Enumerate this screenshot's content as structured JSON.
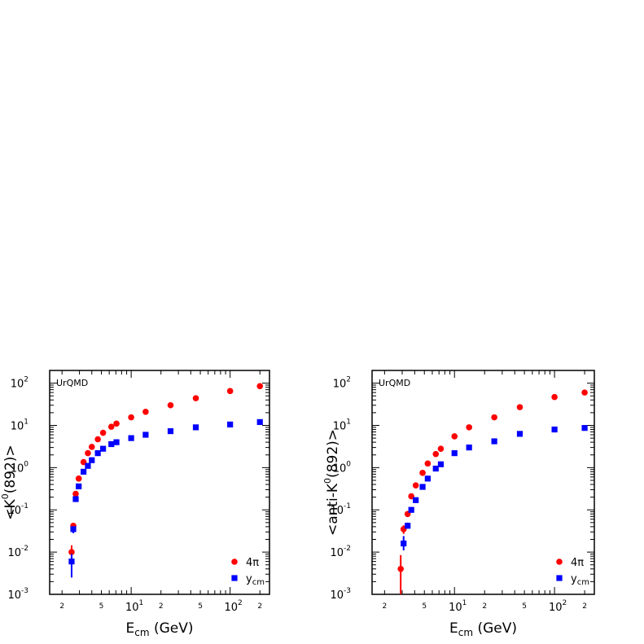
{
  "figure": {
    "colors": {
      "series_4pi": "#ff0000",
      "series_ycm": "#0000ff",
      "axis": "#000000"
    }
  },
  "chart_data": [
    {
      "type": "scatter",
      "panel_label": "UrQMD",
      "xlabel_main": "E",
      "xlabel_sub": "cm",
      "xlabel_unit": "(GeV)",
      "ylabel": "<K⁰(892)>",
      "ylabel_base": "<K",
      "ylabel_sup": "0",
      "ylabel_tail": "(892)>",
      "xscale": "log",
      "yscale": "log",
      "xlim": [
        1.5,
        250
      ],
      "ylim": [
        0.001,
        200
      ],
      "grid": false,
      "legend_position": "bottom-right",
      "x_tick_labels": [
        {
          "x": 2,
          "text": "2"
        },
        {
          "x": 5,
          "text": "5"
        },
        {
          "x": 10,
          "base": "10",
          "exp": "1"
        },
        {
          "x": 20,
          "text": "2"
        },
        {
          "x": 50,
          "text": "5"
        },
        {
          "x": 100,
          "base": "10",
          "exp": "2"
        },
        {
          "x": 200,
          "text": "2"
        }
      ],
      "y_tick_labels": [
        {
          "y": 0.001,
          "base": "10",
          "exp": "-3"
        },
        {
          "y": 0.01,
          "base": "10",
          "exp": "-2"
        },
        {
          "y": 0.1,
          "base": "10",
          "exp": "-1"
        },
        {
          "y": 1,
          "base": "10",
          "exp": "0"
        },
        {
          "y": 10,
          "base": "10",
          "exp": "1"
        },
        {
          "y": 100,
          "base": "10",
          "exp": "2"
        }
      ],
      "series": [
        {
          "name": "4π",
          "legend_main": "4π",
          "legend_sub": "",
          "marker": "circle",
          "color": "#ff0000",
          "points": [
            {
              "x": 2.5,
              "y": 0.01,
              "ylo": 0.0065,
              "yhi": 0.0145
            },
            {
              "x": 2.6,
              "y": 0.042,
              "ylo": 0.037,
              "yhi": 0.048
            },
            {
              "x": 2.75,
              "y": 0.24
            },
            {
              "x": 2.95,
              "y": 0.55
            },
            {
              "x": 3.3,
              "y": 1.35
            },
            {
              "x": 3.65,
              "y": 2.2
            },
            {
              "x": 4.0,
              "y": 3.1
            },
            {
              "x": 4.6,
              "y": 4.7
            },
            {
              "x": 5.2,
              "y": 6.7
            },
            {
              "x": 6.3,
              "y": 9.3
            },
            {
              "x": 7.1,
              "y": 11
            },
            {
              "x": 10,
              "y": 15.5
            },
            {
              "x": 14,
              "y": 21
            },
            {
              "x": 25,
              "y": 30
            },
            {
              "x": 45,
              "y": 44
            },
            {
              "x": 100,
              "y": 65
            },
            {
              "x": 200,
              "y": 85
            }
          ]
        },
        {
          "name": "y_cm",
          "legend_main": "y",
          "legend_sub": "cm",
          "marker": "square",
          "color": "#0000ff",
          "points": [
            {
              "x": 2.5,
              "y": 0.006,
              "ylo": 0.0025,
              "yhi": 0.009
            },
            {
              "x": 2.6,
              "y": 0.035,
              "ylo": 0.028,
              "yhi": 0.04
            },
            {
              "x": 2.75,
              "y": 0.18
            },
            {
              "x": 2.95,
              "y": 0.36
            },
            {
              "x": 3.3,
              "y": 0.8
            },
            {
              "x": 3.65,
              "y": 1.1
            },
            {
              "x": 4.0,
              "y": 1.5
            },
            {
              "x": 4.6,
              "y": 2.2
            },
            {
              "x": 5.2,
              "y": 2.8
            },
            {
              "x": 6.3,
              "y": 3.6
            },
            {
              "x": 7.1,
              "y": 4
            },
            {
              "x": 10,
              "y": 5
            },
            {
              "x": 14,
              "y": 6
            },
            {
              "x": 25,
              "y": 7.3
            },
            {
              "x": 45,
              "y": 9
            },
            {
              "x": 100,
              "y": 10.5
            },
            {
              "x": 200,
              "y": 12
            }
          ]
        }
      ]
    },
    {
      "type": "scatter",
      "panel_label": "UrQMD",
      "xlabel_main": "E",
      "xlabel_sub": "cm",
      "xlabel_unit": "(GeV)",
      "ylabel": "<anti-K⁰(892)>",
      "ylabel_base": "<anti-K",
      "ylabel_sup": "0",
      "ylabel_tail": "(892)>",
      "xscale": "log",
      "yscale": "log",
      "xlim": [
        1.5,
        250
      ],
      "ylim": [
        0.001,
        200
      ],
      "grid": false,
      "legend_position": "bottom-right",
      "x_tick_labels": [
        {
          "x": 2,
          "text": "2"
        },
        {
          "x": 5,
          "text": "5"
        },
        {
          "x": 10,
          "base": "10",
          "exp": "1"
        },
        {
          "x": 20,
          "text": "2"
        },
        {
          "x": 50,
          "text": "5"
        },
        {
          "x": 100,
          "base": "10",
          "exp": "2"
        },
        {
          "x": 200,
          "text": "2"
        }
      ],
      "y_tick_labels": [
        {
          "y": 0.001,
          "base": "10",
          "exp": "-3"
        },
        {
          "y": 0.01,
          "base": "10",
          "exp": "-2"
        },
        {
          "y": 0.1,
          "base": "10",
          "exp": "-1"
        },
        {
          "y": 1,
          "base": "10",
          "exp": "0"
        },
        {
          "y": 10,
          "base": "10",
          "exp": "1"
        },
        {
          "y": 100,
          "base": "10",
          "exp": "2"
        }
      ],
      "series": [
        {
          "name": "4π",
          "legend_main": "4π",
          "legend_sub": "",
          "marker": "circle",
          "color": "#ff0000",
          "points": [
            {
              "x": 2.9,
              "y": 0.004,
              "ylo": 0.001,
              "yhi": 0.0085
            },
            {
              "x": 3.1,
              "y": 0.035,
              "ylo": 0.027,
              "yhi": 0.043
            },
            {
              "x": 3.4,
              "y": 0.08
            },
            {
              "x": 3.7,
              "y": 0.21
            },
            {
              "x": 4.1,
              "y": 0.38
            },
            {
              "x": 4.8,
              "y": 0.75
            },
            {
              "x": 5.4,
              "y": 1.25
            },
            {
              "x": 6.5,
              "y": 2.1
            },
            {
              "x": 7.3,
              "y": 2.8
            },
            {
              "x": 10,
              "y": 5.5
            },
            {
              "x": 14,
              "y": 9
            },
            {
              "x": 25,
              "y": 15.5
            },
            {
              "x": 45,
              "y": 27
            },
            {
              "x": 100,
              "y": 47
            },
            {
              "x": 200,
              "y": 60
            }
          ]
        },
        {
          "name": "y_cm",
          "legend_main": "y",
          "legend_sub": "cm",
          "marker": "square",
          "color": "#0000ff",
          "points": [
            {
              "x": 3.1,
              "y": 0.016,
              "ylo": 0.011,
              "yhi": 0.024
            },
            {
              "x": 3.4,
              "y": 0.042,
              "ylo": 0.036,
              "yhi": 0.05
            },
            {
              "x": 3.7,
              "y": 0.1
            },
            {
              "x": 4.1,
              "y": 0.17
            },
            {
              "x": 4.8,
              "y": 0.35
            },
            {
              "x": 5.4,
              "y": 0.55
            },
            {
              "x": 6.5,
              "y": 0.95
            },
            {
              "x": 7.3,
              "y": 1.2
            },
            {
              "x": 10,
              "y": 2.2
            },
            {
              "x": 14,
              "y": 3
            },
            {
              "x": 25,
              "y": 4.2
            },
            {
              "x": 45,
              "y": 6.3
            },
            {
              "x": 100,
              "y": 8
            },
            {
              "x": 200,
              "y": 8.7
            }
          ]
        }
      ]
    }
  ]
}
